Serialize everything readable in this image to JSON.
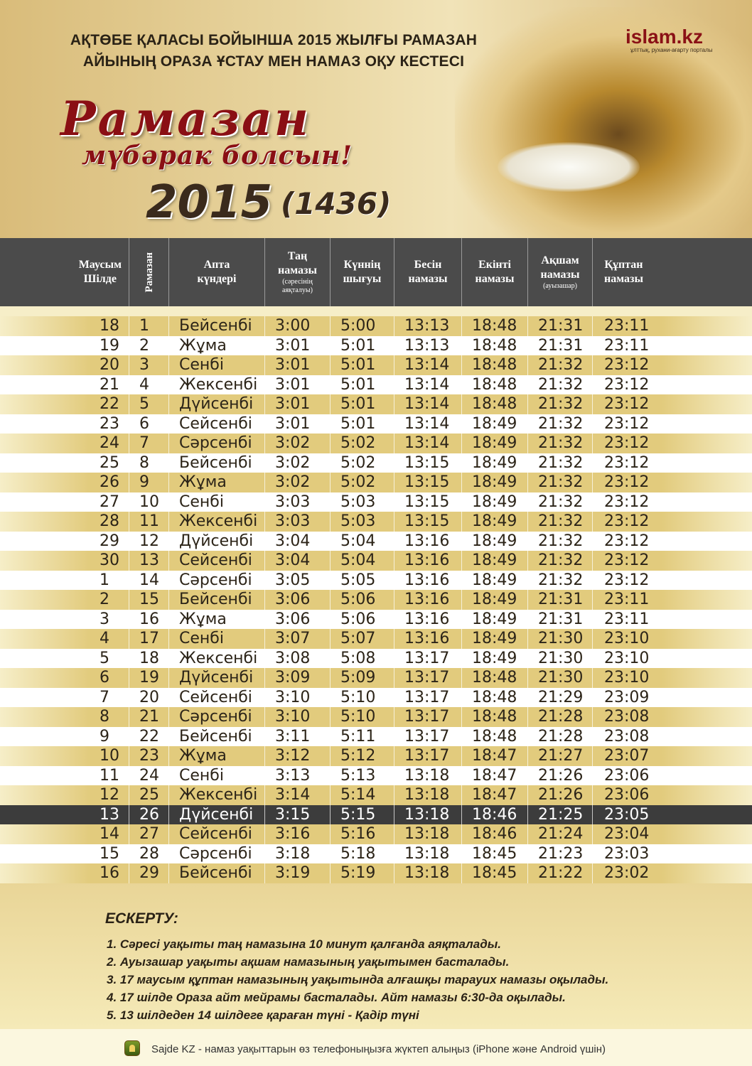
{
  "header": {
    "title_line1": "АҚТӨБЕ ҚАЛАСЫ БОЙЫНША 2015 ЖЫЛҒЫ РАМАЗАН",
    "title_line2": "АЙЫНЫҢ ОРАЗА ҰСТАУ МЕН НАМАЗ ОҚУ КЕСТЕСІ",
    "logo": "islam.kz",
    "logo_tagline": "ұлттық, рухани-ағарту порталы",
    "greeting1": "Рамазан",
    "greeting2": "мүбәрак болсын!",
    "year": "2015",
    "hijri_year": "(1436)"
  },
  "table": {
    "columns": [
      {
        "label": "Маусым\nШілде"
      },
      {
        "label": "Рамазан"
      },
      {
        "label": "Апта\nкүндері"
      },
      {
        "label": "Таң\nнамазы",
        "note": "(сәресінің\nаяқталуы)"
      },
      {
        "label": "Күннің\nшығуы"
      },
      {
        "label": "Бесін\nнамазы"
      },
      {
        "label": "Екінті\nнамазы"
      },
      {
        "label": "Ақшам\nнамазы",
        "note": "(ауызашар)"
      },
      {
        "label": "Құптан\nнамазы"
      }
    ],
    "highlight_row": 25,
    "rows": [
      [
        "18",
        "1",
        "Бейсенбі",
        "3:00",
        "5:00",
        "13:13",
        "18:48",
        "21:31",
        "23:11"
      ],
      [
        "19",
        "2",
        "Жұма",
        "3:01",
        "5:01",
        "13:13",
        "18:48",
        "21:31",
        "23:11"
      ],
      [
        "20",
        "3",
        "Сенбі",
        "3:01",
        "5:01",
        "13:14",
        "18:48",
        "21:32",
        "23:12"
      ],
      [
        "21",
        "4",
        "Жексенбі",
        "3:01",
        "5:01",
        "13:14",
        "18:48",
        "21:32",
        "23:12"
      ],
      [
        "22",
        "5",
        "Дүйсенбі",
        "3:01",
        "5:01",
        "13:14",
        "18:48",
        "21:32",
        "23:12"
      ],
      [
        "23",
        "6",
        "Сейсенбі",
        "3:01",
        "5:01",
        "13:14",
        "18:49",
        "21:32",
        "23:12"
      ],
      [
        "24",
        "7",
        "Сәрсенбі",
        "3:02",
        "5:02",
        "13:14",
        "18:49",
        "21:32",
        "23:12"
      ],
      [
        "25",
        "8",
        "Бейсенбі",
        "3:02",
        "5:02",
        "13:15",
        "18:49",
        "21:32",
        "23:12"
      ],
      [
        "26",
        "9",
        "Жұма",
        "3:02",
        "5:02",
        "13:15",
        "18:49",
        "21:32",
        "23:12"
      ],
      [
        "27",
        "10",
        "Сенбі",
        "3:03",
        "5:03",
        "13:15",
        "18:49",
        "21:32",
        "23:12"
      ],
      [
        "28",
        "11",
        "Жексенбі",
        "3:03",
        "5:03",
        "13:15",
        "18:49",
        "21:32",
        "23:12"
      ],
      [
        "29",
        "12",
        "Дүйсенбі",
        "3:04",
        "5:04",
        "13:16",
        "18:49",
        "21:32",
        "23:12"
      ],
      [
        "30",
        "13",
        "Сейсенбі",
        "3:04",
        "5:04",
        "13:16",
        "18:49",
        "21:32",
        "23:12"
      ],
      [
        "1",
        "14",
        "Сәрсенбі",
        "3:05",
        "5:05",
        "13:16",
        "18:49",
        "21:32",
        "23:12"
      ],
      [
        "2",
        "15",
        "Бейсенбі",
        "3:06",
        "5:06",
        "13:16",
        "18:49",
        "21:31",
        "23:11"
      ],
      [
        "3",
        "16",
        "Жұма",
        "3:06",
        "5:06",
        "13:16",
        "18:49",
        "21:31",
        "23:11"
      ],
      [
        "4",
        "17",
        "Сенбі",
        "3:07",
        "5:07",
        "13:16",
        "18:49",
        "21:30",
        "23:10"
      ],
      [
        "5",
        "18",
        "Жексенбі",
        "3:08",
        "5:08",
        "13:17",
        "18:49",
        "21:30",
        "23:10"
      ],
      [
        "6",
        "19",
        "Дүйсенбі",
        "3:09",
        "5:09",
        "13:17",
        "18:48",
        "21:30",
        "23:10"
      ],
      [
        "7",
        "20",
        "Сейсенбі",
        "3:10",
        "5:10",
        "13:17",
        "18:48",
        "21:29",
        "23:09"
      ],
      [
        "8",
        "21",
        "Сәрсенбі",
        "3:10",
        "5:10",
        "13:17",
        "18:48",
        "21:28",
        "23:08"
      ],
      [
        "9",
        "22",
        "Бейсенбі",
        "3:11",
        "5:11",
        "13:17",
        "18:48",
        "21:28",
        "23:08"
      ],
      [
        "10",
        "23",
        "Жұма",
        "3:12",
        "5:12",
        "13:17",
        "18:47",
        "21:27",
        "23:07"
      ],
      [
        "11",
        "24",
        "Сенбі",
        "3:13",
        "5:13",
        "13:18",
        "18:47",
        "21:26",
        "23:06"
      ],
      [
        "12",
        "25",
        "Жексенбі",
        "3:14",
        "5:14",
        "13:18",
        "18:47",
        "21:26",
        "23:06"
      ],
      [
        "13",
        "26",
        "Дүйсенбі",
        "3:15",
        "5:15",
        "13:18",
        "18:46",
        "21:25",
        "23:05"
      ],
      [
        "14",
        "27",
        "Сейсенбі",
        "3:16",
        "5:16",
        "13:18",
        "18:46",
        "21:24",
        "23:04"
      ],
      [
        "15",
        "28",
        "Сәрсенбі",
        "3:18",
        "5:18",
        "13:18",
        "18:45",
        "21:23",
        "23:03"
      ],
      [
        "16",
        "29",
        "Бейсенбі",
        "3:19",
        "5:19",
        "13:18",
        "18:45",
        "21:22",
        "23:02"
      ]
    ]
  },
  "notes": {
    "heading": "ЕСКЕРТУ:",
    "items": [
      "1. Сәресі уақыты таң намазына 10 минут қалғанда аяқталады.",
      "2. Ауызашар уақыты ақшам намазының уақытымен басталады.",
      "3. 17 маусым құптан намазының уақытында алғашқы тарауих намазы оқылады.",
      "4. 17 шілде Ораза айт мейрамы басталады. Айт намазы 6:30-да оқылады.",
      "5. 13 шілдеден 14 шілдеге қараған түні - Қадір түні"
    ]
  },
  "footer": {
    "text": "Sajde KZ - намаз уақыттарын өз телефоныңызға жүктеп алыңыз (iPhone және Android үшін)",
    "icon": "mosque-app-icon"
  }
}
